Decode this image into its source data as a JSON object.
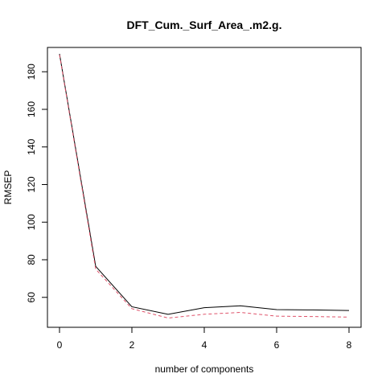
{
  "chart_data": {
    "type": "line",
    "title": "DFT_Cum._Surf_Area_.m2.g.",
    "xlabel": "number of components",
    "ylabel": "RMSEP",
    "x": [
      0,
      1,
      2,
      3,
      4,
      5,
      6,
      7,
      8
    ],
    "xlim": [
      0,
      8
    ],
    "ylim": [
      46,
      191
    ],
    "xticks": [
      0,
      2,
      4,
      6,
      8
    ],
    "yticks": [
      60,
      80,
      100,
      120,
      140,
      160,
      180
    ],
    "series": [
      {
        "values": [
          189.5,
          76.5,
          55.0,
          51.0,
          54.5,
          55.5,
          53.5,
          53.3,
          53.0
        ],
        "color": "#000000",
        "linestyle": "solid"
      },
      {
        "values": [
          189.0,
          75.0,
          54.0,
          49.0,
          51.0,
          52.0,
          50.0,
          49.8,
          49.5
        ],
        "color": "#DF536B",
        "linestyle": "dashed"
      }
    ],
    "grid": false,
    "legend": "none"
  }
}
